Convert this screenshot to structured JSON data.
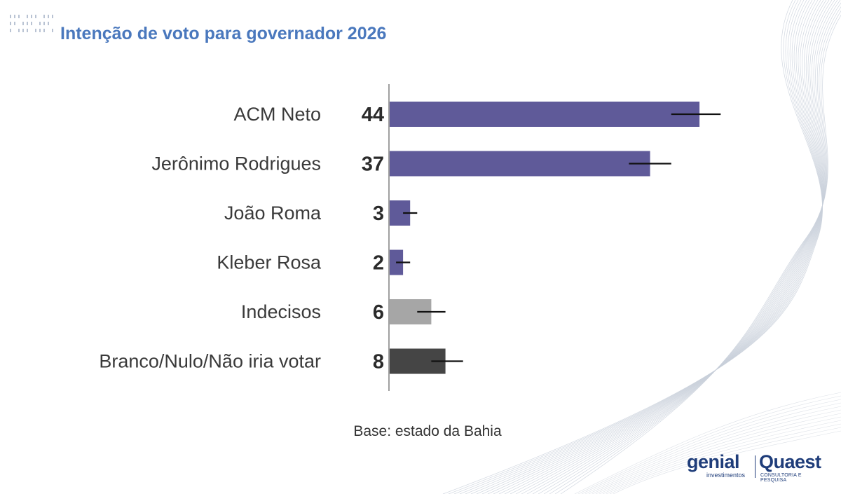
{
  "title": "Intenção de voto para governador 2026",
  "base_note": "Base: estado da Bahia",
  "brand": {
    "genial": "genial",
    "genial_sub": "investimentos",
    "quaest": "Quaest",
    "quaest_sub": "CONSULTORIA E PESQUISA"
  },
  "colors": {
    "title": "#4a78bd",
    "candidate": "#5f5a99",
    "indecisos": "#a6a6a6",
    "branco_nulo": "#454545",
    "error_bar": "#111111",
    "axis": "#a0a0a0"
  },
  "chart_data": {
    "type": "bar",
    "orientation": "horizontal",
    "categories": [
      "ACM Neto",
      "Jerônimo Rodrigues",
      "João Roma",
      "Kleber Rosa",
      "Indecisos",
      "Branco/Nulo/Não iria votar"
    ],
    "values": [
      44,
      37,
      3,
      2,
      6,
      8
    ],
    "value_labels": [
      "44",
      "37",
      "3",
      "2",
      "6",
      "8"
    ],
    "error_low": [
      40,
      34,
      2,
      1,
      4,
      6
    ],
    "error_high": [
      47,
      40,
      4,
      3,
      8,
      10.5
    ],
    "bar_colors": [
      "#5f5a99",
      "#5f5a99",
      "#5f5a99",
      "#5f5a99",
      "#a6a6a6",
      "#454545"
    ],
    "xlim": [
      0,
      60
    ],
    "grid": false,
    "legend": "none"
  }
}
